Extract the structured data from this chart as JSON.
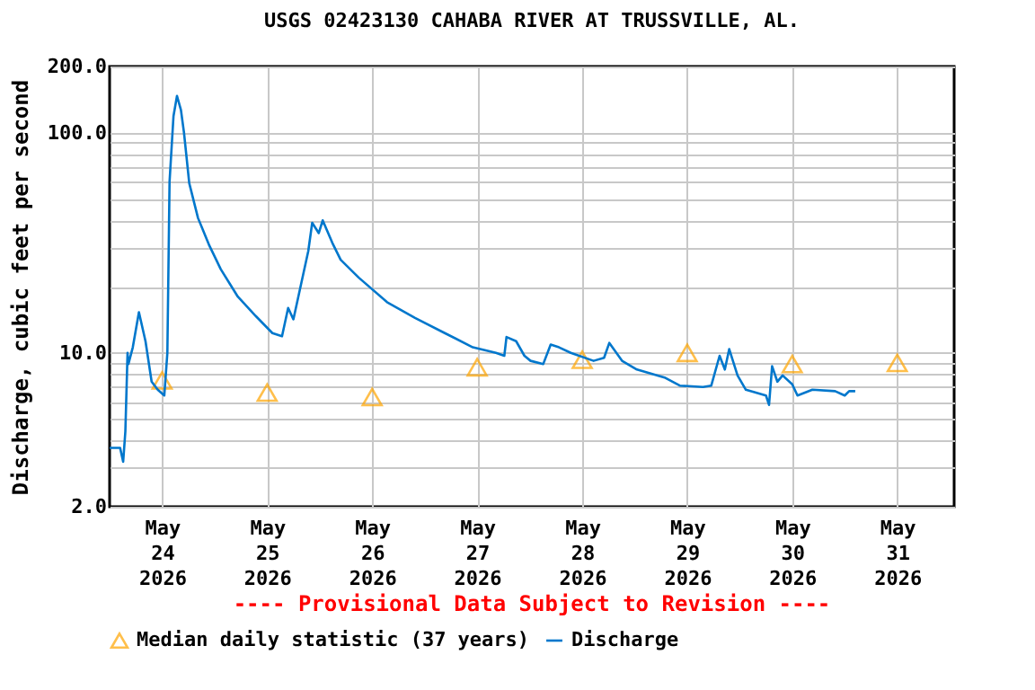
{
  "chart_data": {
    "type": "line",
    "title": "USGS 02423130 CAHABA RIVER AT TRUSSVILLE, AL.",
    "ylabel": "Discharge, cubic feet per second",
    "log": "y",
    "grid": true,
    "legend": "bottom",
    "annotations": [
      "---- Provisional Data Subject to Revision ----"
    ],
    "xlim": [
      "2026-05-23T12:00",
      "2026-05-31T13:00"
    ],
    "xticks": [
      {
        "value": "2026-05-24",
        "label": "May\n24\n2026"
      },
      {
        "value": "2026-05-25",
        "label": "May\n25\n2026"
      },
      {
        "value": "2026-05-26",
        "label": "May\n26\n2026"
      },
      {
        "value": "2026-05-27",
        "label": "May\n27\n2026"
      },
      {
        "value": "2026-05-28",
        "label": "May\n28\n2026"
      },
      {
        "value": "2026-05-29",
        "label": "May\n29\n2026"
      },
      {
        "value": "2026-05-30",
        "label": "May\n30\n2026"
      },
      {
        "value": "2026-05-31",
        "label": "May\n31\n2026"
      }
    ],
    "ylim": [
      2,
      200
    ],
    "yticks": [
      {
        "value": 2,
        "label": "2.0"
      },
      {
        "value": 3,
        "label": null
      },
      {
        "value": 4,
        "label": null
      },
      {
        "value": 5,
        "label": null
      },
      {
        "value": 6,
        "label": null
      },
      {
        "value": 7,
        "label": null
      },
      {
        "value": 8,
        "label": null
      },
      {
        "value": 9,
        "label": null
      },
      {
        "value": 10,
        "label": "10.0"
      },
      {
        "value": 20,
        "label": null
      },
      {
        "value": 30,
        "label": null
      },
      {
        "value": 40,
        "label": null
      },
      {
        "value": 50,
        "label": null
      },
      {
        "value": 60,
        "label": null
      },
      {
        "value": 70,
        "label": null
      },
      {
        "value": 80,
        "label": null
      },
      {
        "value": 90,
        "label": null
      },
      {
        "value": 100,
        "label": "100.0"
      },
      {
        "value": 200,
        "label": "200.0"
      }
    ],
    "series": [
      {
        "name": "Median daily statistic (37 years)",
        "type": "scatter",
        "marker": "triangle",
        "color": "#ffa500",
        "x": [
          "2026-05-24",
          "2026-05-25",
          "2026-05-26",
          "2026-05-27",
          "2026-05-28",
          "2026-05-29",
          "2026-05-30",
          "2026-05-31"
        ],
        "values": [
          7.5,
          6.6,
          6.3,
          8.6,
          9.3,
          10,
          8.9,
          9.0
        ]
      },
      {
        "name": "Discharge",
        "line_style": "solid",
        "color": "#0077cc",
        "x": [
          "2026-05-23T12:00",
          "2026-05-23T14:24",
          "2026-05-23T15:06",
          "2026-05-23T15:36",
          "2026-05-23T16:06",
          "2026-05-23T16:18",
          "2026-05-23T17:18",
          "2026-05-23T18:42",
          "2026-05-23T20:12",
          "2026-05-23T21:36",
          "2026-05-23T23:00",
          "2026-05-24T00:30",
          "2026-05-24T01:12",
          "2026-05-24T01:42",
          "2026-05-24T02:36",
          "2026-05-24T03:24",
          "2026-05-24T04:18",
          "2026-05-24T05:00",
          "2026-05-24T06:12",
          "2026-05-24T08:12",
          "2026-05-24T10:48",
          "2026-05-24T13:24",
          "2026-05-24T17:18",
          "2026-05-24T21:24",
          "2026-05-25T01:12",
          "2026-05-25T03:24",
          "2026-05-25T04:48",
          "2026-05-25T06:00",
          "2026-05-25T07:42",
          "2026-05-25T09:24",
          "2026-05-25T10:18",
          "2026-05-25T11:48",
          "2026-05-25T12:42",
          "2026-05-25T14:54",
          "2026-05-25T16:48",
          "2026-05-25T20:54",
          "2026-05-26T03:24",
          "2026-05-26T09:48",
          "2026-05-26T16:36",
          "2026-05-26T23:00",
          "2026-05-27T04:18",
          "2026-05-27T06:12",
          "2026-05-27T06:42",
          "2026-05-27T08:54",
          "2026-05-27T10:48",
          "2026-05-27T12:12",
          "2026-05-27T15:06",
          "2026-05-27T16:48",
          "2026-05-27T18:42",
          "2026-05-27T21:24",
          "2026-05-28T02:36",
          "2026-05-28T05:00",
          "2026-05-28T06:12",
          "2026-05-28T09:06",
          "2026-05-28T12:30",
          "2026-05-28T19:00",
          "2026-05-28T22:18",
          "2026-05-29T03:36",
          "2026-05-29T05:30",
          "2026-05-29T07:24",
          "2026-05-29T08:36",
          "2026-05-29T09:36",
          "2026-05-29T11:30",
          "2026-05-29T13:24",
          "2026-05-29T18:00",
          "2026-05-29T18:42",
          "2026-05-29T19:24",
          "2026-05-29T20:36",
          "2026-05-29T21:48",
          "2026-05-30T00:00",
          "2026-05-30T01:12",
          "2026-05-30T04:36",
          "2026-05-30T09:48",
          "2026-05-30T12:00",
          "2026-05-30T13:00",
          "2026-05-30T14:24"
        ],
        "values": [
          3.7,
          3.7,
          3.2,
          4.4,
          10,
          8.9,
          10.6,
          15.3,
          11.3,
          7.4,
          6.8,
          6.4,
          10,
          60,
          119,
          147,
          127,
          100,
          59,
          41,
          30.7,
          24,
          18,
          14.7,
          12.3,
          11.9,
          16,
          14.2,
          20.3,
          29,
          39,
          35,
          40,
          31.6,
          26.5,
          22,
          17,
          14.4,
          12.3,
          10.6,
          10,
          9.7,
          11.8,
          11.3,
          9.7,
          9.2,
          8.9,
          10.9,
          10.6,
          10,
          9.2,
          9.5,
          11.1,
          9.2,
          8.4,
          7.7,
          7.1,
          7.0,
          7.1,
          9.7,
          8.4,
          10.4,
          7.9,
          6.8,
          6.4,
          5.8,
          8.7,
          7.4,
          7.9,
          7.2,
          6.4,
          6.8,
          6.7,
          6.4,
          6.7,
          6.7
        ]
      }
    ]
  }
}
